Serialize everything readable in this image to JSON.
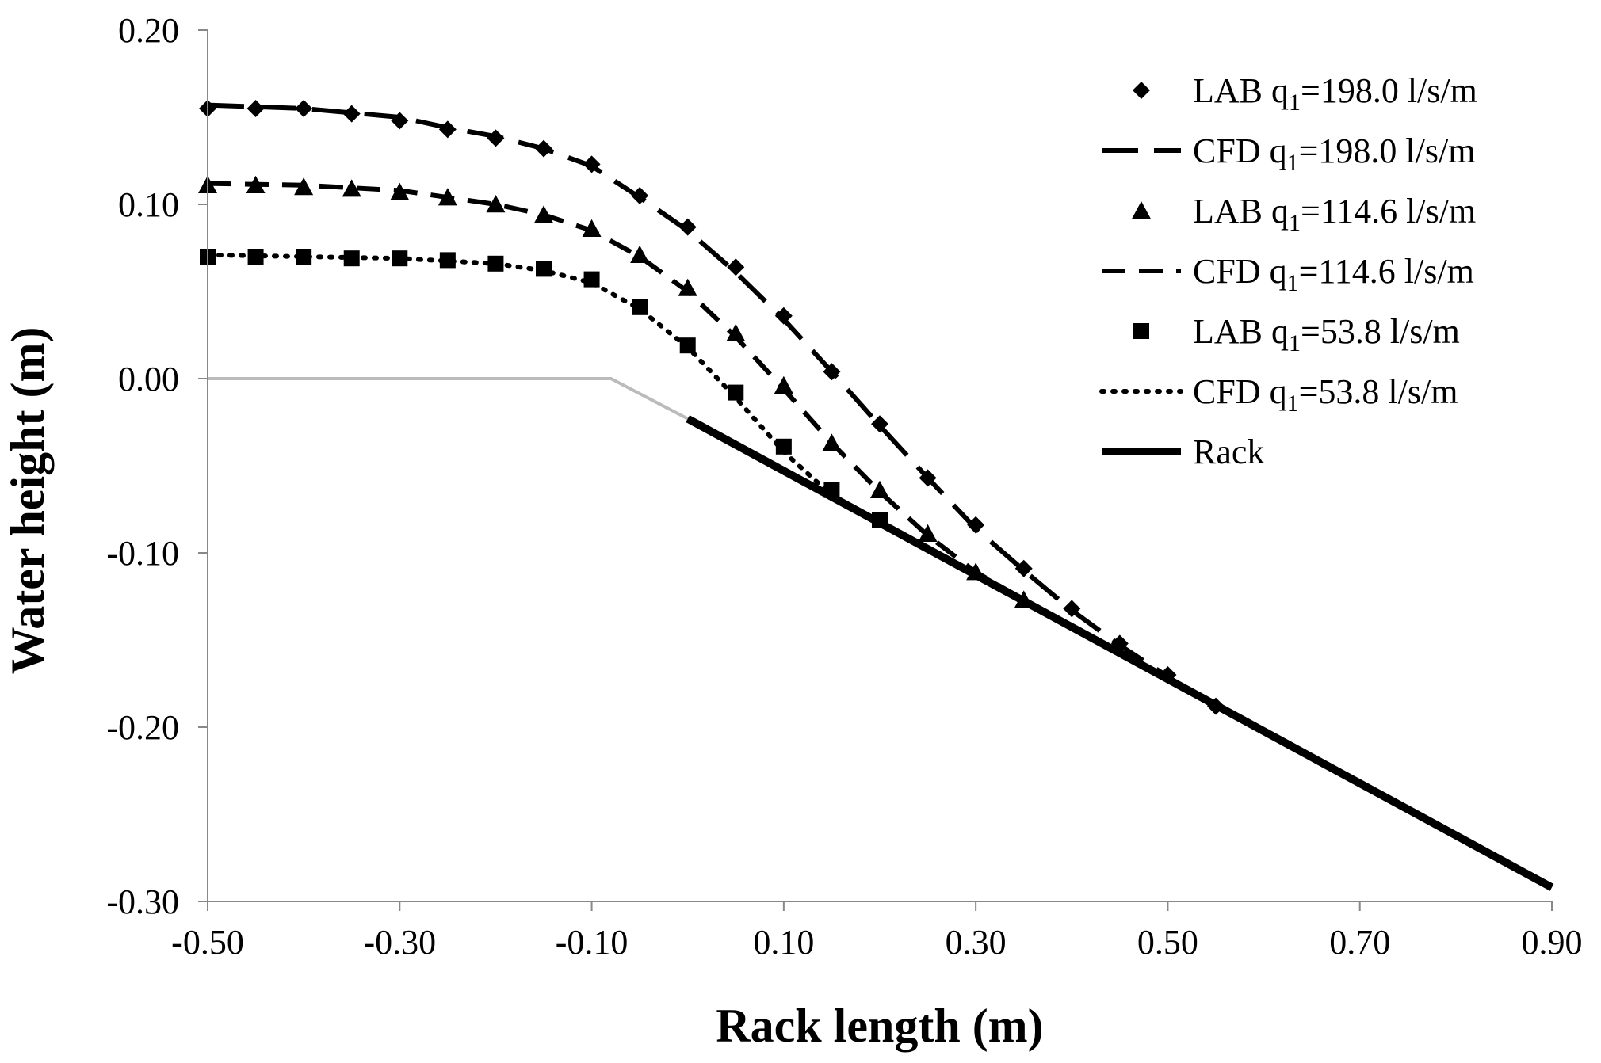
{
  "chart_data": {
    "type": "scatter",
    "xlabel": "Rack length (m)",
    "ylabel": "Water height (m)",
    "xlim": [
      -0.5,
      0.9
    ],
    "ylim": [
      -0.3,
      0.2
    ],
    "x_ticks": [
      "-0.50",
      "-0.30",
      "-0.10",
      "0.10",
      "0.30",
      "0.50",
      "0.70",
      "0.90"
    ],
    "x_tick_values": [
      -0.5,
      -0.3,
      -0.1,
      0.1,
      0.3,
      0.5,
      0.7,
      0.9
    ],
    "y_ticks": [
      "0.20",
      "0.10",
      "0.00",
      "-0.10",
      "-0.20",
      "-0.30"
    ],
    "y_tick_values": [
      0.2,
      0.1,
      0.0,
      -0.1,
      -0.2,
      -0.3
    ],
    "grid": false,
    "legend_position": "top-right",
    "colors": {
      "series": "#000000",
      "reference": "#bbbbbb",
      "axis": "#888888"
    },
    "reference_line": {
      "x": [
        -0.5,
        -0.08,
        0.0
      ],
      "y": [
        0.0,
        0.0,
        -0.023
      ]
    },
    "series": [
      {
        "name": "LAB q1=198.0 l/s/m",
        "legend_prefix": "LAB q",
        "legend_sub": "1",
        "legend_suffix": "=198.0 l/s/m",
        "kind": "marker",
        "marker": "diamond",
        "x": [
          -0.5,
          -0.45,
          -0.4,
          -0.35,
          -0.3,
          -0.25,
          -0.2,
          -0.15,
          -0.1,
          -0.05,
          0.0,
          0.05,
          0.1,
          0.15,
          0.2,
          0.25,
          0.3,
          0.35,
          0.4,
          0.45,
          0.5,
          0.55
        ],
        "y": [
          0.155,
          0.155,
          0.155,
          0.152,
          0.148,
          0.143,
          0.138,
          0.132,
          0.123,
          0.105,
          0.087,
          0.064,
          0.036,
          0.004,
          -0.026,
          -0.057,
          -0.084,
          -0.109,
          -0.132,
          -0.152,
          -0.17,
          -0.188
        ]
      },
      {
        "name": "CFD q1=198.0 l/s/m",
        "legend_prefix": "CFD q",
        "legend_sub": "1",
        "legend_suffix": "=198.0 l/s/m",
        "kind": "line",
        "dash": "46 20",
        "width": 6,
        "x": [
          -0.5,
          -0.4,
          -0.3,
          -0.25,
          -0.2,
          -0.15,
          -0.1,
          -0.05,
          0.0,
          0.05,
          0.1,
          0.15,
          0.2,
          0.25,
          0.3,
          0.35,
          0.4,
          0.45,
          0.5,
          0.55
        ],
        "y": [
          0.157,
          0.155,
          0.15,
          0.144,
          0.139,
          0.132,
          0.122,
          0.104,
          0.085,
          0.061,
          0.034,
          0.004,
          -0.027,
          -0.057,
          -0.086,
          -0.11,
          -0.133,
          -0.153,
          -0.171,
          -0.189
        ]
      },
      {
        "name": "LAB q1=114.6 l/s/m",
        "legend_prefix": "LAB q",
        "legend_sub": "1",
        "legend_suffix": "=114.6 l/s/m",
        "kind": "marker",
        "marker": "triangle",
        "x": [
          -0.5,
          -0.45,
          -0.4,
          -0.35,
          -0.3,
          -0.25,
          -0.2,
          -0.15,
          -0.1,
          -0.05,
          0.0,
          0.05,
          0.1,
          0.15,
          0.2,
          0.25,
          0.3,
          0.35
        ],
        "y": [
          0.111,
          0.111,
          0.11,
          0.109,
          0.107,
          0.104,
          0.1,
          0.094,
          0.086,
          0.071,
          0.052,
          0.026,
          -0.004,
          -0.037,
          -0.064,
          -0.089,
          -0.111,
          -0.127
        ]
      },
      {
        "name": "CFD q1=114.6 l/s/m",
        "legend_prefix": "CFD q",
        "legend_sub": "1",
        "legend_suffix": "=114.6 l/s/m",
        "kind": "line",
        "dash": "30 17",
        "width": 6,
        "x": [
          -0.5,
          -0.4,
          -0.3,
          -0.2,
          -0.15,
          -0.1,
          -0.05,
          0.0,
          0.05,
          0.1,
          0.15,
          0.2,
          0.25,
          0.3,
          0.35
        ],
        "y": [
          0.112,
          0.111,
          0.108,
          0.1,
          0.094,
          0.085,
          0.07,
          0.05,
          0.024,
          -0.006,
          -0.037,
          -0.065,
          -0.09,
          -0.111,
          -0.127
        ]
      },
      {
        "name": "LAB q1=53.8 l/s/m",
        "legend_prefix": "LAB q",
        "legend_sub": "1",
        "legend_suffix": "=53.8 l/s/m",
        "kind": "marker",
        "marker": "square",
        "x": [
          -0.5,
          -0.45,
          -0.4,
          -0.35,
          -0.3,
          -0.25,
          -0.2,
          -0.15,
          -0.1,
          -0.05,
          0.0,
          0.05,
          0.1,
          0.15,
          0.2
        ],
        "y": [
          0.07,
          0.07,
          0.07,
          0.069,
          0.069,
          0.068,
          0.066,
          0.063,
          0.057,
          0.041,
          0.019,
          -0.008,
          -0.039,
          -0.064,
          -0.081
        ]
      },
      {
        "name": "CFD q1=53.8 l/s/m",
        "legend_prefix": "CFD q",
        "legend_sub": "1",
        "legend_suffix": "=53.8 l/s/m",
        "kind": "line",
        "dash": "3 11",
        "width": 6,
        "x": [
          -0.5,
          -0.4,
          -0.3,
          -0.2,
          -0.15,
          -0.1,
          -0.05,
          0.0,
          0.05,
          0.1,
          0.15,
          0.2
        ],
        "y": [
          0.071,
          0.07,
          0.069,
          0.066,
          0.062,
          0.055,
          0.04,
          0.018,
          -0.011,
          -0.042,
          -0.067,
          -0.082
        ]
      },
      {
        "name": "Rack",
        "legend_prefix": "Rack",
        "legend_sub": "",
        "legend_suffix": "",
        "kind": "line",
        "dash": "",
        "width": 10,
        "x": [
          0.0,
          0.9
        ],
        "y": [
          -0.023,
          -0.292
        ]
      }
    ]
  }
}
